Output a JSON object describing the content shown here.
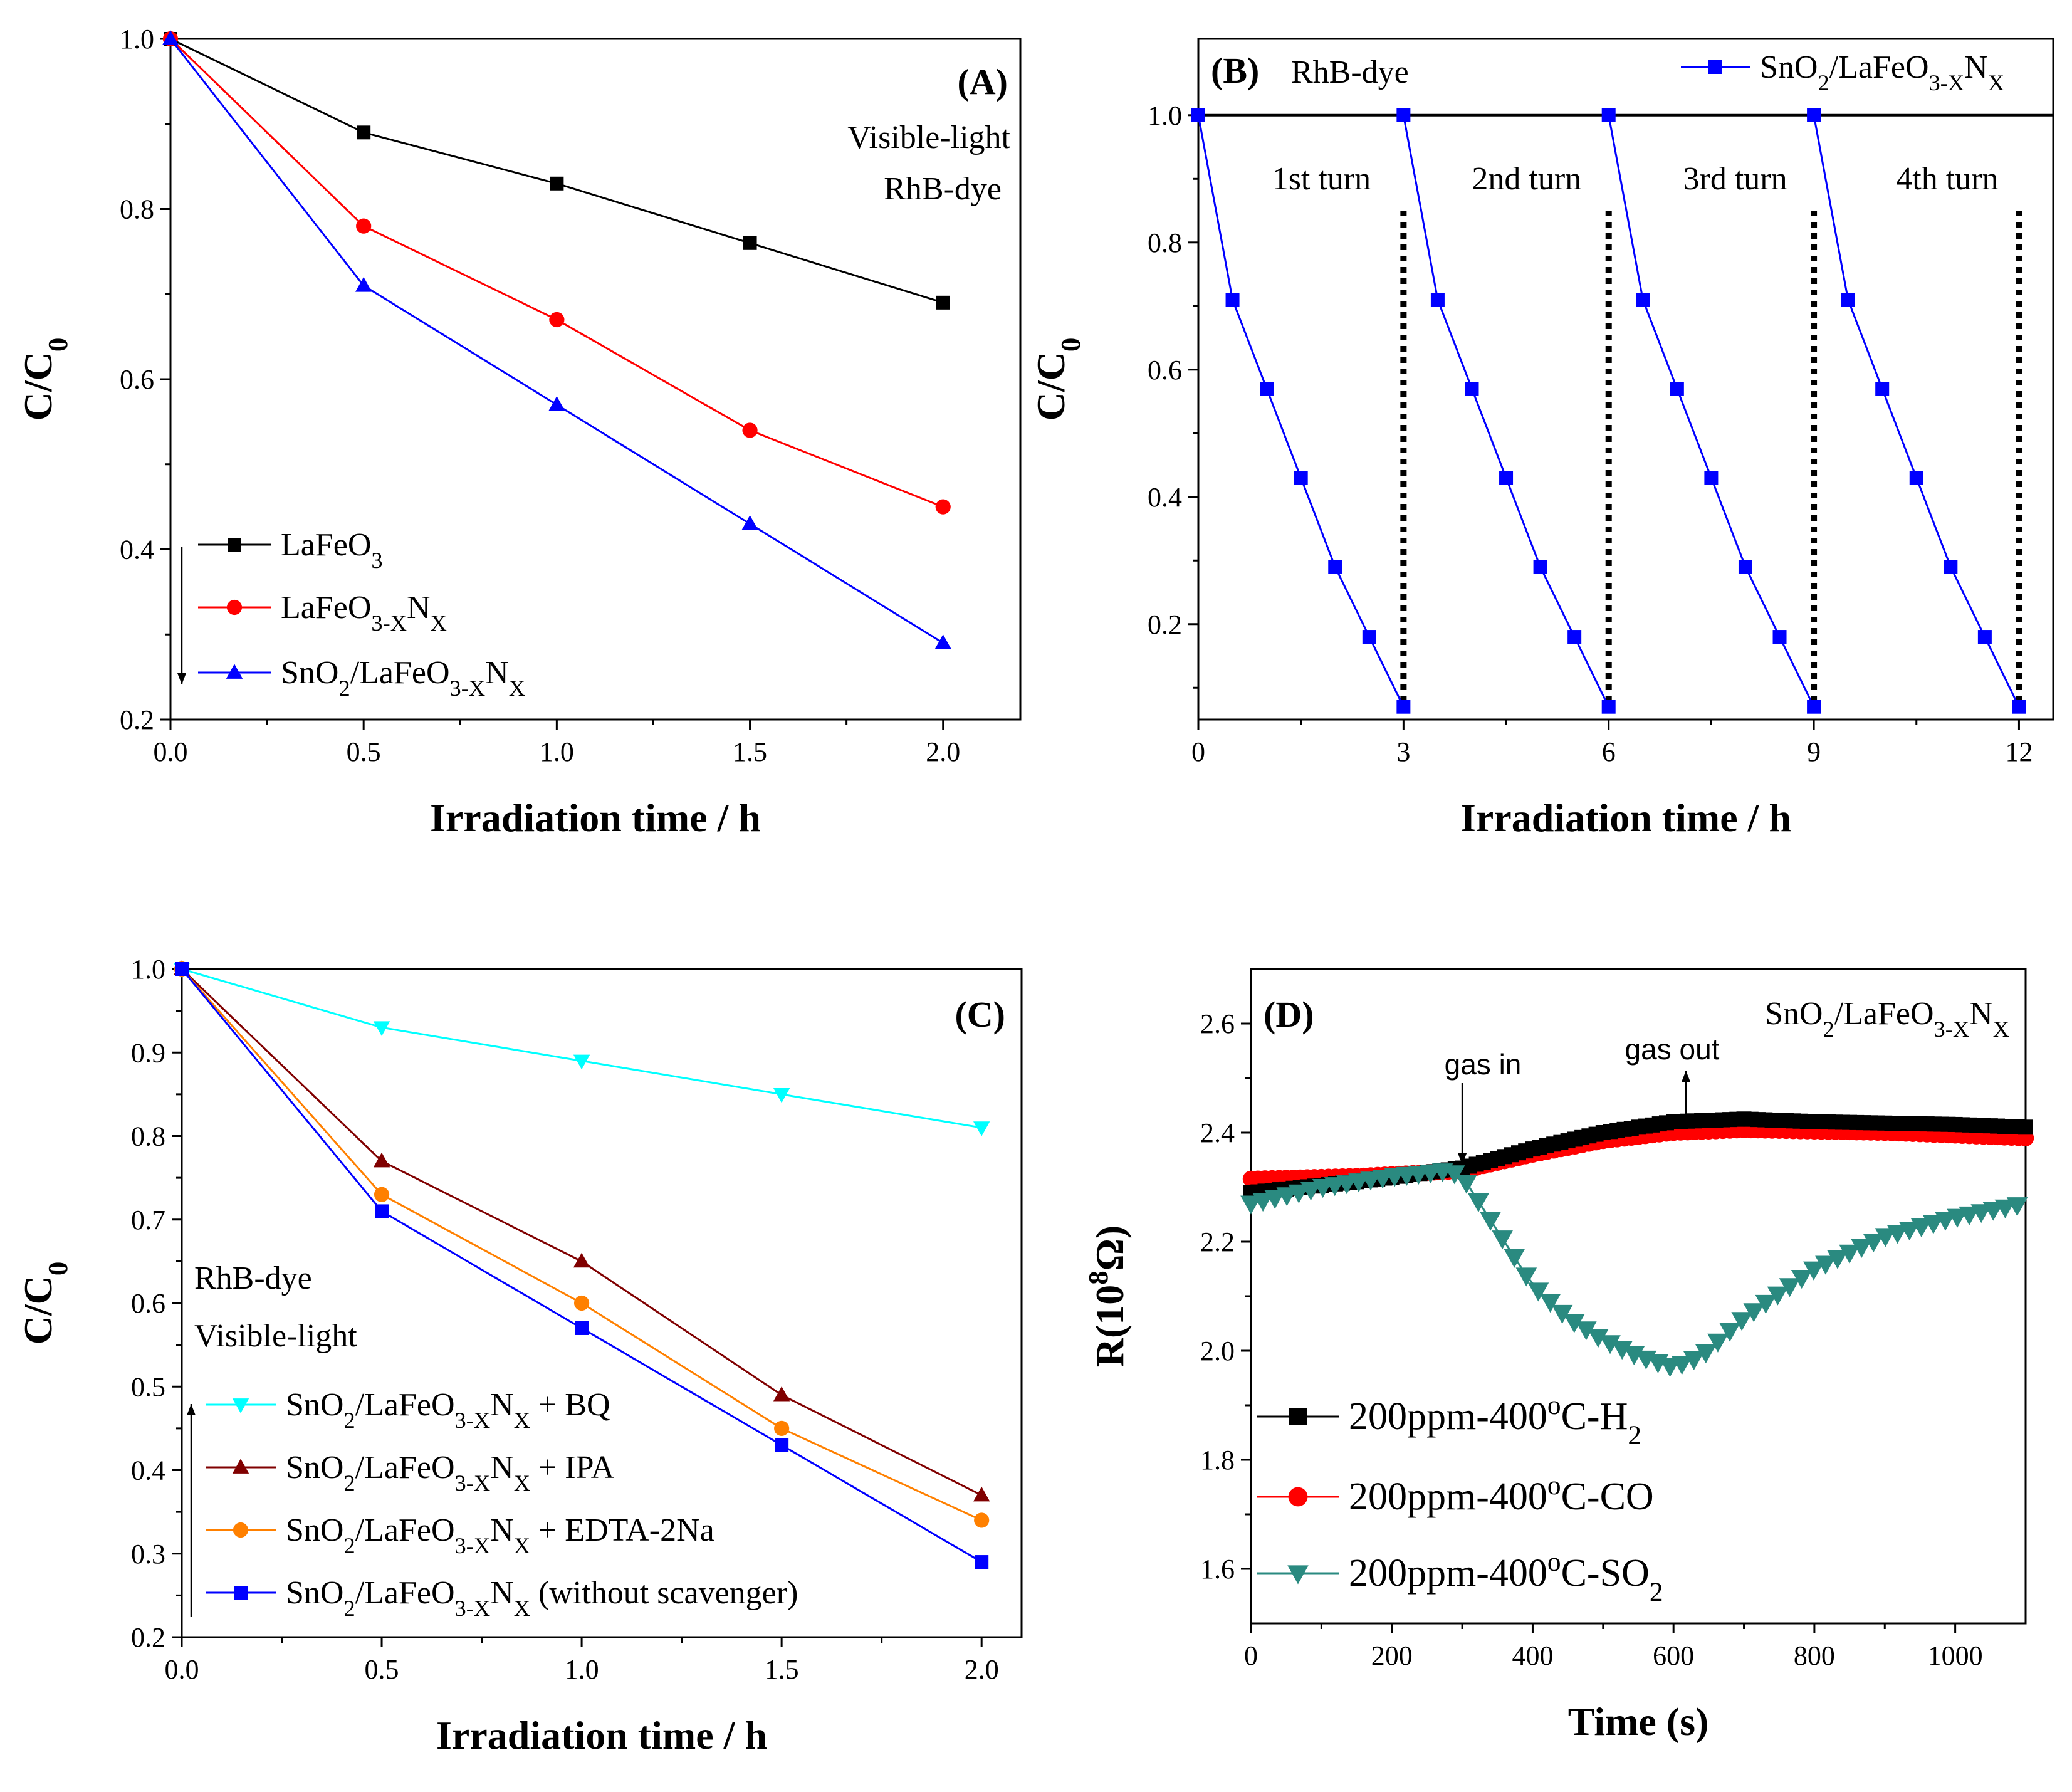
{
  "chart_data": [
    {
      "panel": "(A)",
      "type": "line",
      "annotation": [
        "Visible-light",
        "RhB-dye"
      ],
      "xlabel": "Irradiation time / h",
      "ylabel": "C/C0",
      "ylabel_parts": {
        "main": "C/C",
        "sub": "0"
      },
      "xlim": [
        0,
        2.2
      ],
      "ylim": [
        0.2,
        1.0
      ],
      "xticks": [
        "0.0",
        "0.5",
        "1.0",
        "1.5",
        "2.0"
      ],
      "yticks": [
        "0.2",
        "0.4",
        "0.6",
        "0.8",
        "1.0"
      ],
      "x": [
        0,
        0.5,
        1.0,
        1.5,
        2.0
      ],
      "series": [
        {
          "name": "LaFeO3",
          "label": [
            [
              "LaFeO",
              ""
            ],
            [
              "3",
              "sub"
            ]
          ],
          "color": "#000000",
          "marker": "square",
          "values": [
            1.0,
            0.89,
            0.83,
            0.76,
            0.69
          ]
        },
        {
          "name": "LaFeO3-XNX",
          "label": [
            [
              "LaFeO",
              ""
            ],
            [
              "3-X",
              "sub"
            ],
            [
              "N",
              ""
            ],
            [
              "X",
              "sub"
            ]
          ],
          "color": "#ff0000",
          "marker": "circle",
          "values": [
            1.0,
            0.78,
            0.67,
            0.54,
            0.45
          ]
        },
        {
          "name": "SnO2/LaFeO3-XNX",
          "label": [
            [
              "SnO",
              ""
            ],
            [
              "2",
              "sub"
            ],
            [
              "/LaFeO",
              ""
            ],
            [
              "3-X",
              "sub"
            ],
            [
              "N",
              ""
            ],
            [
              "X",
              "sub"
            ]
          ],
          "color": "#0000ff",
          "marker": "triangle",
          "values": [
            1.0,
            0.71,
            0.57,
            0.43,
            0.29
          ]
        }
      ]
    },
    {
      "panel": "(B)",
      "type": "line",
      "annotation": [
        "RhB-dye"
      ],
      "turn_labels": [
        "1st turn",
        "2nd turn",
        "3rd turn",
        "4th turn"
      ],
      "xlabel": "Irradiation time / h",
      "ylabel": "C/C0",
      "ylabel_parts": {
        "main": "C/C",
        "sub": "0"
      },
      "xlim": [
        0,
        12.5
      ],
      "ylim": [
        0.05,
        1.12
      ],
      "xticks": [
        "0",
        "3",
        "6",
        "9",
        "12"
      ],
      "yticks": [
        "0.2",
        "0.4",
        "0.6",
        "0.8",
        "1.0"
      ],
      "reference_line": 1.0,
      "cycle_boundaries": [
        3,
        6,
        9,
        12
      ],
      "series": [
        {
          "name": "SnO2/LaFeO3-XNX",
          "label": [
            [
              "SnO",
              ""
            ],
            [
              "2",
              "sub"
            ],
            [
              "/LaFeO",
              ""
            ],
            [
              "3-X",
              "sub"
            ],
            [
              "N",
              ""
            ],
            [
              "X",
              "sub"
            ]
          ],
          "color": "#0000ff",
          "marker": "square",
          "cycle_x": [
            0,
            0.5,
            1.0,
            1.5,
            2.0,
            2.5,
            3.0
          ],
          "cycle_values": [
            1.0,
            0.71,
            0.57,
            0.43,
            0.29,
            0.18,
            0.07
          ],
          "cycles": [
            0,
            3,
            6,
            9
          ]
        }
      ]
    },
    {
      "panel": "(C)",
      "type": "line",
      "annotation": [
        "RhB-dye",
        "Visible-light"
      ],
      "xlabel": "Irradiation time / h",
      "ylabel": "C/C0",
      "ylabel_parts": {
        "main": "C/C",
        "sub": "0"
      },
      "xlim": [
        0,
        2.1
      ],
      "ylim": [
        0.2,
        1.0
      ],
      "xticks": [
        "0.0",
        "0.5",
        "1.0",
        "1.5",
        "2.0"
      ],
      "yticks": [
        "0.2",
        "0.3",
        "0.4",
        "0.5",
        "0.6",
        "0.7",
        "0.8",
        "0.9",
        "1.0"
      ],
      "x": [
        0,
        0.5,
        1.0,
        1.5,
        2.0
      ],
      "series": [
        {
          "name": "SnO2/LaFeO3-XNX + BQ",
          "label": [
            [
              "SnO",
              ""
            ],
            [
              "2",
              "sub"
            ],
            [
              "/LaFeO",
              ""
            ],
            [
              "3-X",
              "sub"
            ],
            [
              "N",
              ""
            ],
            [
              "X",
              "sub"
            ],
            [
              " + BQ",
              ""
            ]
          ],
          "color": "#00ffff",
          "marker": "triangle-down",
          "values": [
            1.0,
            0.93,
            0.89,
            0.85,
            0.81
          ]
        },
        {
          "name": "SnO2/LaFeO3-XNX + IPA",
          "label": [
            [
              "SnO",
              ""
            ],
            [
              "2",
              "sub"
            ],
            [
              "/LaFeO",
              ""
            ],
            [
              "3-X",
              "sub"
            ],
            [
              "N",
              ""
            ],
            [
              "X",
              "sub"
            ],
            [
              " + IPA",
              ""
            ]
          ],
          "color": "#800000",
          "marker": "triangle",
          "values": [
            1.0,
            0.77,
            0.65,
            0.49,
            0.37
          ]
        },
        {
          "name": "SnO2/LaFeO3-XNX + EDTA-2Na",
          "label": [
            [
              "SnO",
              ""
            ],
            [
              "2",
              "sub"
            ],
            [
              "/LaFeO",
              ""
            ],
            [
              "3-X",
              "sub"
            ],
            [
              "N",
              ""
            ],
            [
              "X",
              "sub"
            ],
            [
              " + EDTA-2Na",
              ""
            ]
          ],
          "color": "#ff8000",
          "marker": "circle",
          "values": [
            1.0,
            0.73,
            0.6,
            0.45,
            0.34
          ]
        },
        {
          "name": "SnO2/LaFeO3-XNX (without scavenger)",
          "label": [
            [
              "SnO",
              ""
            ],
            [
              "2",
              "sub"
            ],
            [
              "/LaFeO",
              ""
            ],
            [
              "3-X",
              "sub"
            ],
            [
              "N",
              ""
            ],
            [
              "X",
              "sub"
            ],
            [
              " (without scavenger)",
              ""
            ]
          ],
          "color": "#0000ff",
          "marker": "square",
          "values": [
            1.0,
            0.71,
            0.57,
            0.43,
            0.29
          ]
        }
      ]
    },
    {
      "panel": "(D)",
      "type": "line",
      "annotation": [
        [
          [
            "SnO",
            ""
          ],
          [
            "2",
            "sub"
          ],
          [
            "/LaFeO",
            ""
          ],
          [
            "3-X",
            "sub"
          ],
          [
            "N",
            ""
          ],
          [
            "X",
            "sub"
          ]
        ]
      ],
      "gas_in_label": "gas in",
      "gas_out_label": "gas out",
      "gas_in_x": 300,
      "gas_out_x": 600,
      "xlabel": "Time (s)",
      "ylabel": "R(10^8Ω)",
      "ylabel_parts": {
        "pre": "R(10",
        "sup": "8",
        "post": "Ω)"
      },
      "xlim": [
        0,
        1100
      ],
      "ylim": [
        1.5,
        2.7
      ],
      "xticks": [
        "0",
        "200",
        "400",
        "600",
        "800",
        "1000"
      ],
      "yticks": [
        "1.6",
        "1.8",
        "2.0",
        "2.2",
        "2.4",
        "2.6"
      ],
      "series": [
        {
          "name": "200ppm-400°C-H2",
          "label": [
            [
              "200ppm-400",
              ""
            ],
            [
              "o",
              "sup"
            ],
            [
              "C-H",
              ""
            ],
            [
              "2",
              "sub"
            ]
          ],
          "color": "#000000",
          "marker": "square",
          "keypoints": [
            [
              0,
              2.29
            ],
            [
              150,
              2.31
            ],
            [
              300,
              2.335
            ],
            [
              400,
              2.37
            ],
            [
              500,
              2.4
            ],
            [
              600,
              2.42
            ],
            [
              700,
              2.425
            ],
            [
              800,
              2.42
            ],
            [
              1000,
              2.415
            ],
            [
              1100,
              2.41
            ]
          ]
        },
        {
          "name": "200ppm-400°C-CO",
          "label": [
            [
              "200ppm-400",
              ""
            ],
            [
              "o",
              "sup"
            ],
            [
              "C-CO",
              ""
            ]
          ],
          "color": "#ff0000",
          "marker": "circle",
          "keypoints": [
            [
              0,
              2.315
            ],
            [
              150,
              2.32
            ],
            [
              300,
              2.33
            ],
            [
              400,
              2.36
            ],
            [
              500,
              2.385
            ],
            [
              600,
              2.4
            ],
            [
              700,
              2.405
            ],
            [
              900,
              2.4
            ],
            [
              1100,
              2.39
            ]
          ]
        },
        {
          "name": "200ppm-400°C-SO2",
          "label": [
            [
              "200ppm-400",
              ""
            ],
            [
              "o",
              "sup"
            ],
            [
              "C-SO",
              ""
            ],
            [
              "2",
              "sub"
            ]
          ],
          "color": "#2a8a80",
          "marker": "triangle-down",
          "keypoints": [
            [
              0,
              2.27
            ],
            [
              100,
              2.3
            ],
            [
              200,
              2.32
            ],
            [
              280,
              2.33
            ],
            [
              300,
              2.32
            ],
            [
              350,
              2.22
            ],
            [
              400,
              2.12
            ],
            [
              450,
              2.06
            ],
            [
              500,
              2.02
            ],
            [
              550,
              1.99
            ],
            [
              600,
              1.97
            ],
            [
              640,
              1.99
            ],
            [
              700,
              2.06
            ],
            [
              800,
              2.15
            ],
            [
              900,
              2.21
            ],
            [
              1000,
              2.245
            ],
            [
              1100,
              2.27
            ]
          ]
        }
      ]
    }
  ]
}
